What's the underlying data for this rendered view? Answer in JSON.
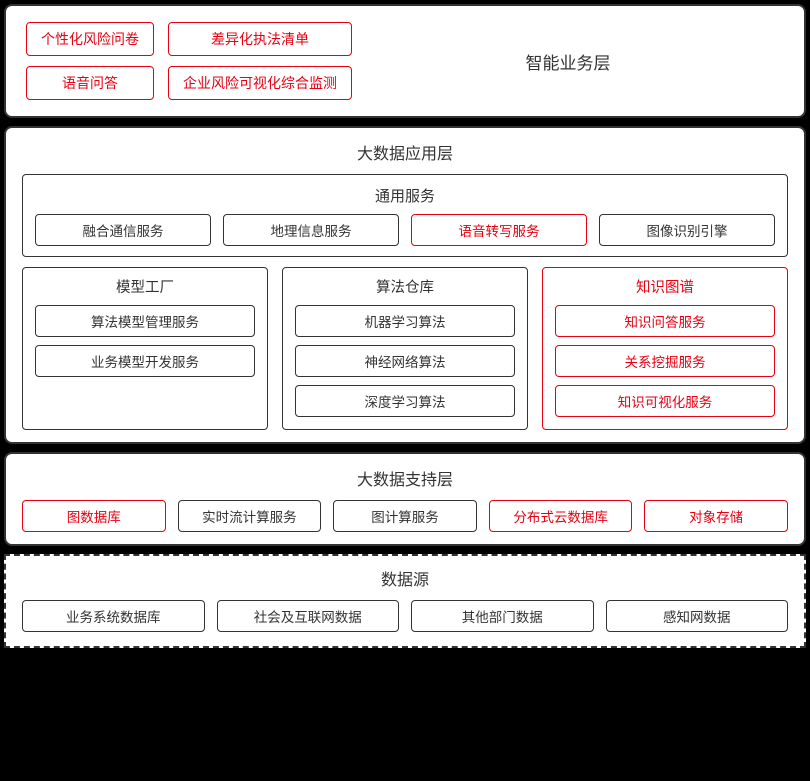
{
  "colors": {
    "red": "#e60012",
    "black": "#333333",
    "background": "#ffffff",
    "page_bg": "#000000"
  },
  "layer1": {
    "title": "智能业务层",
    "items": [
      {
        "label": "个性化风险问卷",
        "red": true
      },
      {
        "label": "差异化执法清单",
        "red": true
      },
      {
        "label": "语音问答",
        "red": true
      },
      {
        "label": "企业风险可视化综合监测",
        "red": true
      }
    ]
  },
  "layer2": {
    "title": "大数据应用层",
    "general": {
      "title": "通用服务",
      "items": [
        {
          "label": "融合通信服务",
          "red": false
        },
        {
          "label": "地理信息服务",
          "red": false
        },
        {
          "label": "语音转写服务",
          "red": true
        },
        {
          "label": "图像识别引擎",
          "red": false
        }
      ]
    },
    "columns": [
      {
        "title": "模型工厂",
        "red": false,
        "items": [
          {
            "label": "算法模型管理服务",
            "red": false
          },
          {
            "label": "业务模型开发服务",
            "red": false
          }
        ]
      },
      {
        "title": "算法仓库",
        "red": false,
        "items": [
          {
            "label": "机器学习算法",
            "red": false
          },
          {
            "label": "神经网络算法",
            "red": false
          },
          {
            "label": "深度学习算法",
            "red": false
          }
        ]
      },
      {
        "title": "知识图谱",
        "red": true,
        "items": [
          {
            "label": "知识问答服务",
            "red": true
          },
          {
            "label": "关系挖掘服务",
            "red": true
          },
          {
            "label": "知识可视化服务",
            "red": true
          }
        ]
      }
    ]
  },
  "layer3": {
    "title": "大数据支持层",
    "items": [
      {
        "label": "图数据库",
        "red": true
      },
      {
        "label": "实时流计算服务",
        "red": false
      },
      {
        "label": "图计算服务",
        "red": false
      },
      {
        "label": "分布式云数据库",
        "red": true
      },
      {
        "label": "对象存储",
        "red": true
      }
    ]
  },
  "layer4": {
    "title": "数据源",
    "items": [
      {
        "label": "业务系统数据库",
        "red": false
      },
      {
        "label": "社会及互联网数据",
        "red": false
      },
      {
        "label": "其他部门数据",
        "red": false
      },
      {
        "label": "感知网数据",
        "red": false
      }
    ]
  }
}
